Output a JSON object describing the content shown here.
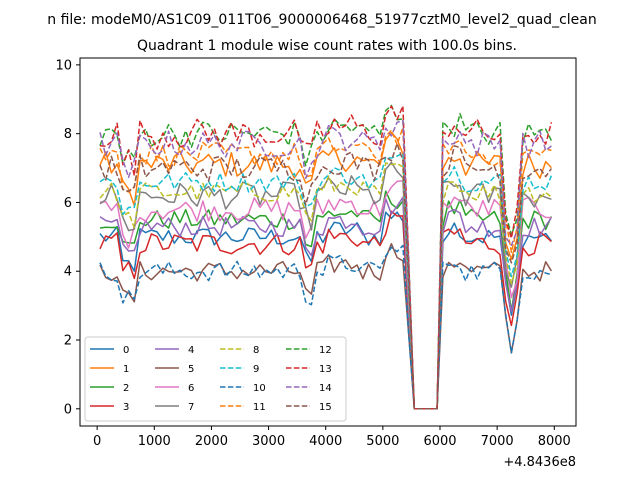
{
  "chart_data": {
    "type": "line",
    "suptitle": "n file: modeM0/AS1C09_011T06_9000006468_51977cztM0_level2_quad_clean",
    "title": "Quadrant 1 module wise count rates with 100.0s bins.",
    "xlabel": "",
    "ylabel": "",
    "x_offset_label": "+4.8436e8",
    "xlim": [
      -300,
      8380
    ],
    "ylim": [
      -0.5,
      10.2
    ],
    "x_ticks": [
      0,
      1000,
      2000,
      3000,
      4000,
      5000,
      6000,
      7000,
      8000
    ],
    "x_tick_labels": [
      "0",
      "1000",
      "2000",
      "3000",
      "4000",
      "5000",
      "6000",
      "7000",
      "8000"
    ],
    "y_ticks": [
      0,
      2,
      4,
      6,
      8,
      10
    ],
    "y_tick_labels": [
      "0",
      "2",
      "4",
      "6",
      "8",
      "10"
    ],
    "grid": false,
    "legend_placement": "lower-left",
    "x_start": 50,
    "x_step": 100,
    "gap_level": 0,
    "series": [
      {
        "name": "0",
        "color": "#1f77b4",
        "dashed": false,
        "base": 5.0,
        "amp": 0.3,
        "dip": 2.4
      },
      {
        "name": "1",
        "color": "#ff7f0e",
        "dashed": false,
        "base": 7.1,
        "amp": 0.4,
        "dip": 2.9
      },
      {
        "name": "2",
        "color": "#2ca02c",
        "dashed": false,
        "base": 5.5,
        "amp": 0.3,
        "dip": 2.8
      },
      {
        "name": "3",
        "color": "#d62728",
        "dashed": false,
        "base": 4.8,
        "amp": 0.35,
        "dip": 2.5
      },
      {
        "name": "4",
        "color": "#9467bd",
        "dashed": false,
        "base": 5.3,
        "amp": 0.3,
        "dip": 2.6
      },
      {
        "name": "5",
        "color": "#8c564b",
        "dashed": false,
        "base": 4.0,
        "amp": 0.3,
        "dip": 2.5
      },
      {
        "name": "6",
        "color": "#e377c2",
        "dashed": false,
        "base": 5.8,
        "amp": 0.35,
        "dip": 2.7
      },
      {
        "name": "7",
        "color": "#7f7f7f",
        "dashed": false,
        "base": 6.2,
        "amp": 0.4,
        "dip": 2.8
      },
      {
        "name": "8",
        "color": "#bcbd22",
        "dashed": true,
        "base": 6.3,
        "amp": 0.3,
        "dip": 2.8
      },
      {
        "name": "9",
        "color": "#17becf",
        "dashed": true,
        "base": 6.6,
        "amp": 0.3,
        "dip": 2.9
      },
      {
        "name": "10",
        "color": "#1f77b4",
        "dashed": true,
        "base": 4.0,
        "amp": 0.3,
        "dip": 2.5
      },
      {
        "name": "11",
        "color": "#ff7f0e",
        "dashed": true,
        "base": 7.4,
        "amp": 0.35,
        "dip": 3.0
      },
      {
        "name": "12",
        "color": "#2ca02c",
        "dashed": true,
        "base": 8.0,
        "amp": 0.4,
        "dip": 3.1
      },
      {
        "name": "13",
        "color": "#d62728",
        "dashed": true,
        "base": 8.0,
        "amp": 0.45,
        "dip": 3.2
      },
      {
        "name": "14",
        "color": "#9467bd",
        "dashed": true,
        "base": 7.7,
        "amp": 0.4,
        "dip": 3.1
      },
      {
        "name": "15",
        "color": "#8c564b",
        "dashed": true,
        "base": 7.0,
        "amp": 0.4,
        "dip": 2.9
      }
    ]
  }
}
